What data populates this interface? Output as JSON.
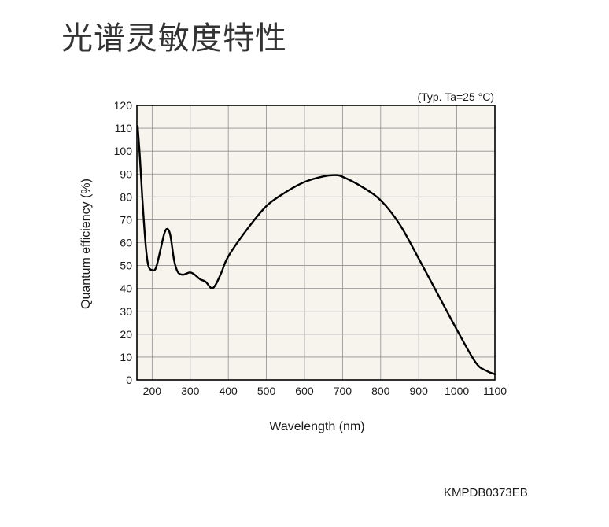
{
  "figure_code": "KMPDB0373EB",
  "colors": {
    "background": "#ffffff",
    "plot_background": "#f6f4ec",
    "grid": "#8f8f8f",
    "line": "#000000"
  },
  "chart_data": {
    "type": "line",
    "title": "光谱灵敏度特性",
    "xlabel": "Wavelength (nm)",
    "ylabel": "Quantum efficiency (%)",
    "annotation": "(Typ. Ta=25 °C)",
    "xlim": [
      160,
      1100
    ],
    "ylim": [
      0,
      120
    ],
    "x_ticks": [
      200,
      300,
      400,
      500,
      600,
      700,
      800,
      900,
      1000,
      1100
    ],
    "y_ticks": [
      0,
      10,
      20,
      30,
      40,
      50,
      60,
      70,
      80,
      90,
      100,
      110,
      120
    ],
    "grid": true,
    "series": [
      {
        "x": [
          162,
          168,
          174,
          183,
          190,
          200,
          210,
          222,
          232,
          240,
          248,
          258,
          268,
          280,
          290,
          300,
          312,
          326,
          340,
          350,
          358,
          368,
          382,
          400,
          450,
          500,
          550,
          600,
          650,
          680,
          700,
          750,
          800,
          850,
          900,
          950,
          1000,
          1050,
          1080,
          1100
        ],
        "y": [
          111,
          97,
          80,
          59,
          50,
          48,
          49,
          57,
          64,
          66,
          63,
          52,
          47,
          46,
          46.5,
          47,
          46,
          44,
          43,
          41,
          40,
          42,
          47,
          54,
          66,
          76,
          82,
          86.5,
          89,
          89.5,
          88.8,
          84.5,
          78.5,
          68,
          53,
          37.5,
          22,
          7.5,
          3.8,
          2.5
        ]
      }
    ]
  }
}
